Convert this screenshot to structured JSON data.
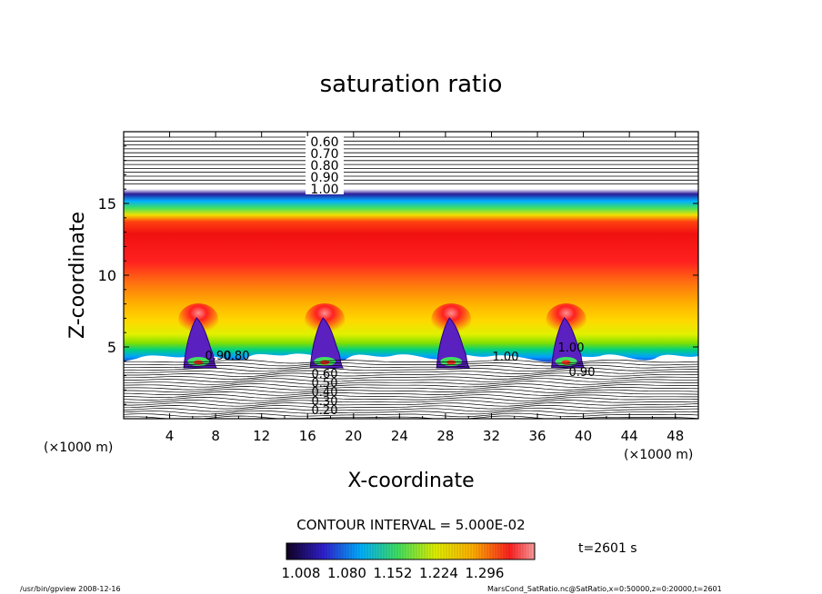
{
  "chart_data": {
    "type": "heatmap",
    "title": "saturation ratio",
    "xlabel": "X-coordinate",
    "ylabel": "Z-coordinate",
    "x_unit": "(×1000 m)",
    "y_unit": "(×1000 m)",
    "xlim": [
      0,
      50
    ],
    "ylim": [
      0,
      20
    ],
    "x_ticks": [
      "4",
      "8",
      "12",
      "16",
      "20",
      "24",
      "28",
      "32",
      "36",
      "40",
      "44",
      "48"
    ],
    "y_ticks": [
      "5",
      "10",
      "15"
    ],
    "contour_labels_upper": [
      "0.60",
      "0.70",
      "0.80",
      "0.90",
      "1.00"
    ],
    "contour_labels_lower": [
      "0.60",
      "0.50",
      "0.40",
      "0.30",
      "0.20"
    ],
    "contour_labels_inline": [
      "0.90",
      "0.80",
      "1.00",
      "1.00",
      "0.90"
    ],
    "contour_interval": "CONTOUR INTERVAL = 5.000E-02",
    "colorbar": {
      "min": 1.008,
      "max": 1.296,
      "tick_labels": [
        "1.008",
        "1.080",
        "1.152",
        "1.224",
        "1.296"
      ]
    },
    "time_label": "t=2601 s",
    "saturated_layer": {
      "z_bottom": 4.5,
      "z_top": 16.0
    },
    "convective_cells_x": [
      6.5,
      17.5,
      28.5,
      38.5
    ]
  },
  "footer": {
    "left": "/usr/bin/gpview   2008-12-16",
    "right": "MarsCond_SatRatio.nc@SatRatio,x=0:50000,z=0:20000,t=2601"
  }
}
